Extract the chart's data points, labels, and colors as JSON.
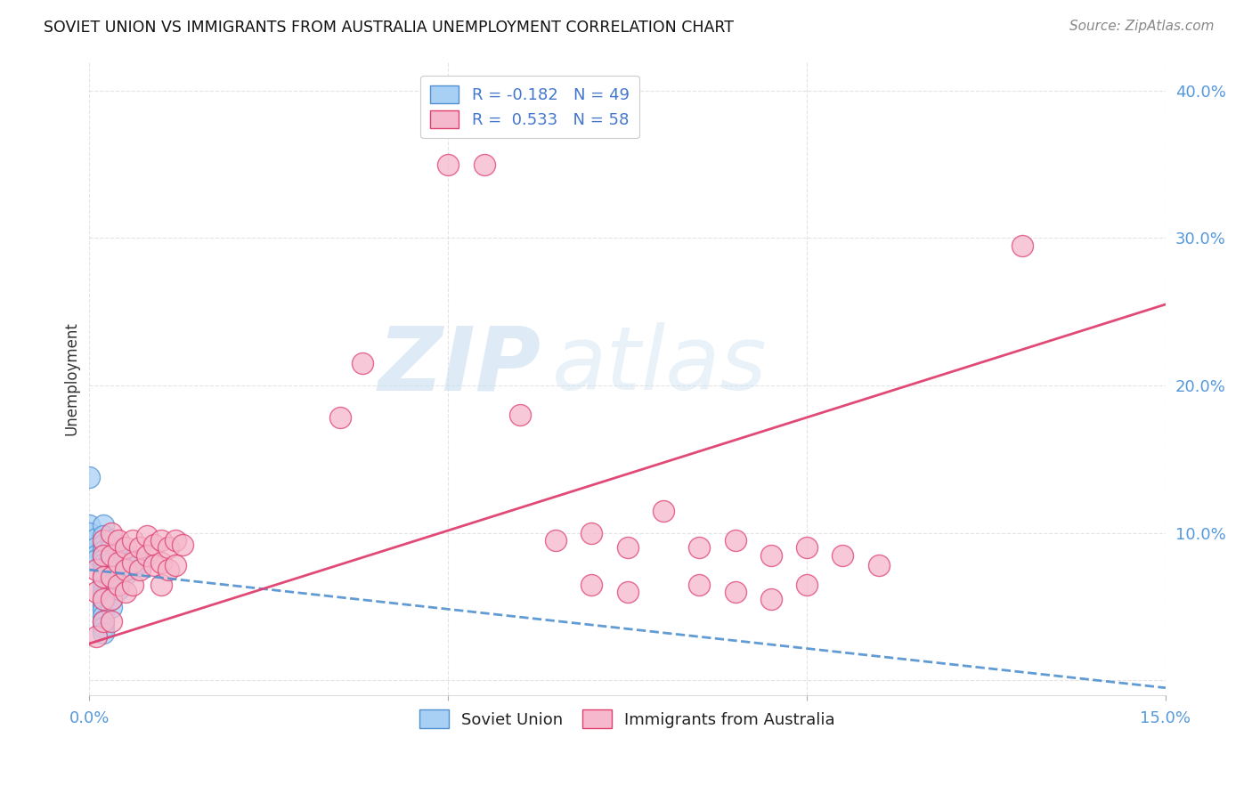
{
  "title": "SOVIET UNION VS IMMIGRANTS FROM AUSTRALIA UNEMPLOYMENT CORRELATION CHART",
  "source": "Source: ZipAtlas.com",
  "ylabel": "Unemployment",
  "xlim": [
    0.0,
    0.15
  ],
  "ylim": [
    -0.01,
    0.42
  ],
  "legend_r1": "R = -0.182",
  "legend_n1": "N = 49",
  "legend_r2": "R =  0.533",
  "legend_n2": "N = 58",
  "color_blue": "#a8d0f5",
  "color_pink": "#f5b8cc",
  "line_blue": "#5090d0",
  "line_pink": "#e04070",
  "watermark_zip": "ZIP",
  "watermark_atlas": "atlas",
  "soviet_points": [
    [
      0.0,
      0.138
    ],
    [
      0.0,
      0.105
    ],
    [
      0.0,
      0.1
    ],
    [
      0.001,
      0.096
    ],
    [
      0.001,
      0.09
    ],
    [
      0.001,
      0.085
    ],
    [
      0.001,
      0.082
    ],
    [
      0.002,
      0.105
    ],
    [
      0.002,
      0.098
    ],
    [
      0.002,
      0.092
    ],
    [
      0.002,
      0.088
    ],
    [
      0.002,
      0.085
    ],
    [
      0.002,
      0.082
    ],
    [
      0.002,
      0.079
    ],
    [
      0.002,
      0.076
    ],
    [
      0.002,
      0.073
    ],
    [
      0.002,
      0.07
    ],
    [
      0.002,
      0.067
    ],
    [
      0.002,
      0.064
    ],
    [
      0.002,
      0.06
    ],
    [
      0.002,
      0.057
    ],
    [
      0.002,
      0.054
    ],
    [
      0.002,
      0.051
    ],
    [
      0.002,
      0.048
    ],
    [
      0.002,
      0.044
    ],
    [
      0.002,
      0.04
    ],
    [
      0.002,
      0.036
    ],
    [
      0.002,
      0.032
    ],
    [
      0.003,
      0.095
    ],
    [
      0.003,
      0.09
    ],
    [
      0.003,
      0.085
    ],
    [
      0.003,
      0.08
    ],
    [
      0.003,
      0.075
    ],
    [
      0.003,
      0.07
    ],
    [
      0.003,
      0.065
    ],
    [
      0.003,
      0.06
    ],
    [
      0.003,
      0.055
    ],
    [
      0.003,
      0.05
    ],
    [
      0.004,
      0.088
    ],
    [
      0.004,
      0.082
    ],
    [
      0.004,
      0.075
    ],
    [
      0.004,
      0.068
    ],
    [
      0.004,
      0.062
    ],
    [
      0.005,
      0.085
    ],
    [
      0.005,
      0.078
    ],
    [
      0.005,
      0.072
    ],
    [
      0.006,
      0.082
    ],
    [
      0.006,
      0.076
    ],
    [
      0.007,
      0.08
    ]
  ],
  "australia_points": [
    [
      0.001,
      0.075
    ],
    [
      0.001,
      0.06
    ],
    [
      0.001,
      0.03
    ],
    [
      0.002,
      0.095
    ],
    [
      0.002,
      0.085
    ],
    [
      0.002,
      0.07
    ],
    [
      0.002,
      0.055
    ],
    [
      0.002,
      0.04
    ],
    [
      0.003,
      0.1
    ],
    [
      0.003,
      0.085
    ],
    [
      0.003,
      0.07
    ],
    [
      0.003,
      0.055
    ],
    [
      0.003,
      0.04
    ],
    [
      0.004,
      0.095
    ],
    [
      0.004,
      0.08
    ],
    [
      0.004,
      0.065
    ],
    [
      0.005,
      0.09
    ],
    [
      0.005,
      0.075
    ],
    [
      0.005,
      0.06
    ],
    [
      0.006,
      0.095
    ],
    [
      0.006,
      0.08
    ],
    [
      0.006,
      0.065
    ],
    [
      0.007,
      0.09
    ],
    [
      0.007,
      0.075
    ],
    [
      0.008,
      0.098
    ],
    [
      0.008,
      0.085
    ],
    [
      0.009,
      0.092
    ],
    [
      0.009,
      0.078
    ],
    [
      0.01,
      0.095
    ],
    [
      0.01,
      0.08
    ],
    [
      0.01,
      0.065
    ],
    [
      0.011,
      0.09
    ],
    [
      0.011,
      0.075
    ],
    [
      0.012,
      0.095
    ],
    [
      0.012,
      0.078
    ],
    [
      0.013,
      0.092
    ],
    [
      0.035,
      0.178
    ],
    [
      0.038,
      0.215
    ],
    [
      0.05,
      0.35
    ],
    [
      0.055,
      0.35
    ],
    [
      0.06,
      0.18
    ],
    [
      0.065,
      0.095
    ],
    [
      0.07,
      0.1
    ],
    [
      0.07,
      0.065
    ],
    [
      0.075,
      0.09
    ],
    [
      0.075,
      0.06
    ],
    [
      0.08,
      0.115
    ],
    [
      0.085,
      0.09
    ],
    [
      0.085,
      0.065
    ],
    [
      0.09,
      0.095
    ],
    [
      0.09,
      0.06
    ],
    [
      0.095,
      0.085
    ],
    [
      0.095,
      0.055
    ],
    [
      0.1,
      0.09
    ],
    [
      0.1,
      0.065
    ],
    [
      0.105,
      0.085
    ],
    [
      0.11,
      0.078
    ],
    [
      0.13,
      0.295
    ]
  ],
  "blue_line_x": [
    0.0,
    0.15
  ],
  "blue_line_y": [
    0.075,
    -0.005
  ],
  "pink_line_x": [
    0.0,
    0.15
  ],
  "pink_line_y": [
    0.025,
    0.255
  ]
}
